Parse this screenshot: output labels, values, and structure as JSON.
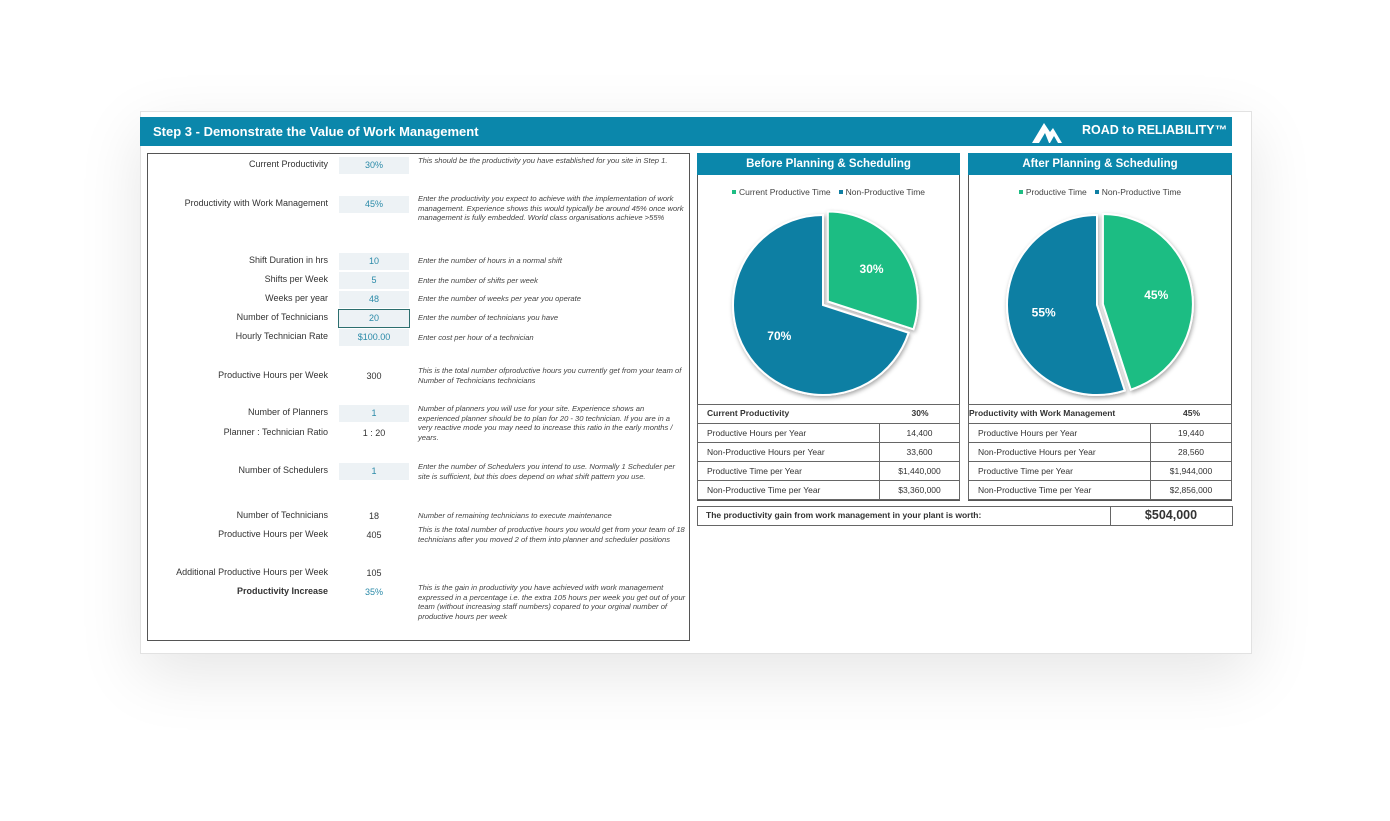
{
  "header": {
    "title": "Step 3 - Demonstrate the Value of Work Management",
    "brand": "ROAD to RELIABILITY™"
  },
  "inputs": [
    {
      "label": "Current Productivity",
      "value": "30%",
      "note": "This should be the productivity you have established for you site in Step 1."
    },
    {
      "label": "Productivity with Work Management",
      "value": "45%",
      "note": "Enter the productivity you expect to achieve with the implementation of work management. Experience shows this would typically be around 45% once work management is fully embedded. World class organisations achieve >55%"
    },
    {
      "label": "Shift Duration in hrs",
      "value": "10",
      "note": "Enter the number of hours in a normal shift"
    },
    {
      "label": "Shifts per Week",
      "value": "5",
      "note": "Enter the number of shifts per week"
    },
    {
      "label": "Weeks per year",
      "value": "48",
      "note": "Enter the number of weeks per year you operate"
    },
    {
      "label": "Number of Technicians",
      "value": "20",
      "note": "Enter the number of technicians you have"
    },
    {
      "label": "Hourly Technician Rate",
      "value": "$100.00",
      "note": "Enter cost per hour of a technician"
    },
    {
      "label": "Productive Hours per Week",
      "value": "300",
      "note": "This is the total number ofproductive hours you currently get from your team of Number of Technicians technicians"
    },
    {
      "label": "Number of Planners",
      "value": "1",
      "note": "Number of planners you will use for your site. Experience shows an experienced planner should be to plan for 20 - 30 technician. If you are in a very reactive mode you may need to increase this ratio in the early months / years."
    },
    {
      "label": "Planner : Technician Ratio",
      "value": "1 : 20"
    },
    {
      "label": "Number of Schedulers",
      "value": "1",
      "note": "Enter the number of Schedulers you intend to use. Normally 1 Scheduler per site is sufficient, but this does depend on what shift pattern you use."
    },
    {
      "label": "Number of Technicians",
      "value": "18",
      "note": "Number of remaining technicians to execute maintenance"
    },
    {
      "label": "Productive Hours per Week",
      "value": "405",
      "note": "This is the total number of productive hours you would get from your team of 18 technicians after you moved 2 of them into planner and scheduler positions"
    },
    {
      "label": "Additional Productive Hours per Week",
      "value": "105"
    },
    {
      "label": "Productivity Increase",
      "value": "35%",
      "note": "This is the gain in productivity you have achieved with work management expressed in a percentage i.e. the extra 105 hours per week you get out of your team (without increasing staff numbers) copared to your orginal number of productive hours per week"
    }
  ],
  "chart_data": [
    {
      "type": "pie",
      "title": "Before Planning & Scheduling",
      "categories": [
        "Current Productive Time",
        "Non-Productive Time"
      ],
      "values": [
        30,
        70
      ],
      "value_labels": [
        "30%",
        "70%"
      ],
      "colors": [
        "#1dbd83",
        "#0f7fa3"
      ]
    },
    {
      "type": "pie",
      "title": "After Planning & Scheduling",
      "categories": [
        "Productive Time",
        "Non-Productive Time"
      ],
      "values": [
        45,
        55
      ],
      "value_labels": [
        "45%",
        "55%"
      ],
      "colors": [
        "#1dbd83",
        "#0f7fa3"
      ]
    }
  ],
  "tables": [
    {
      "header": [
        "Current Productivity",
        "30%"
      ],
      "rows": [
        [
          "Productive Hours per Year",
          "14,400"
        ],
        [
          "Non-Productive Hours per Year",
          "33,600"
        ],
        [
          "Productive Time per Year",
          "$1,440,000"
        ],
        [
          "Non-Productive Time per Year",
          "$3,360,000"
        ]
      ]
    },
    {
      "header": [
        "Productivity with Work Management",
        "45%"
      ],
      "rows": [
        [
          "Productive Hours per Year",
          "19,440"
        ],
        [
          "Non-Productive Hours per Year",
          "28,560"
        ],
        [
          "Productive Time per Year",
          "$1,944,000"
        ],
        [
          "Non-Productive Time per Year",
          "$2,856,000"
        ]
      ]
    }
  ],
  "summary": {
    "label": "The productivity gain from work management in your plant is worth:",
    "value": "$504,000"
  }
}
